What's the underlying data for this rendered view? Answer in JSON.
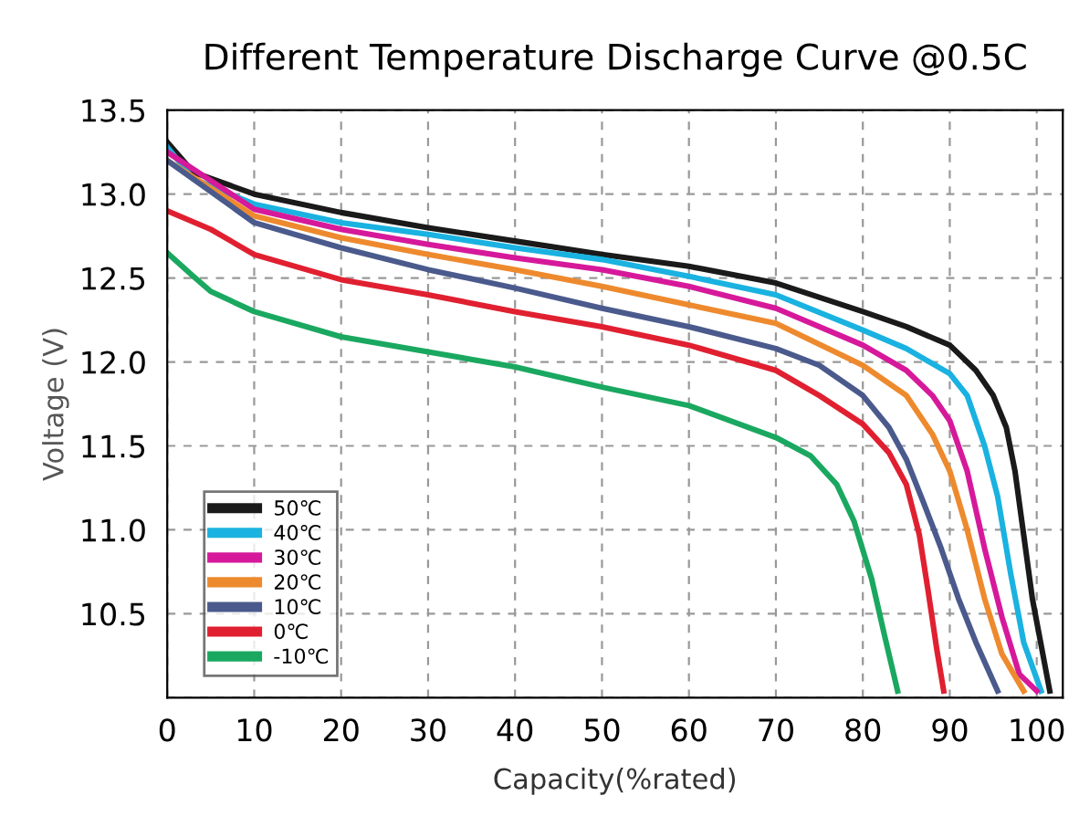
{
  "chart_data": {
    "type": "line",
    "title": "Different Temperature Discharge Curve @0.5C",
    "xlabel": "Capacity(%rated)",
    "ylabel": "Voltage (V)",
    "xlim": [
      0,
      103
    ],
    "xticks": [
      0,
      10,
      20,
      30,
      40,
      50,
      60,
      70,
      80,
      90,
      100
    ],
    "ylim": [
      10.0,
      13.5
    ],
    "yticks": [
      {
        "value": 10.0,
        "label": null
      },
      10.5,
      {
        "value": 11,
        "label": "11.0"
      },
      11.5,
      {
        "value": 12,
        "label": "12.0"
      },
      12.5,
      {
        "value": 13,
        "label": "13.0"
      },
      13.5
    ],
    "grid": true,
    "legend": "bottom left",
    "marker": "none",
    "line_style": "solid",
    "series": [
      {
        "name": "50℃",
        "color": "#1a1a1a",
        "x": [
          0,
          3,
          10,
          20,
          30,
          40,
          50,
          60,
          70,
          80,
          85,
          90,
          93,
          95,
          96.5,
          97.5,
          98.5,
          99.5,
          101.5
        ],
        "values": [
          13.31,
          13.13,
          13.0,
          12.89,
          12.8,
          12.72,
          12.64,
          12.57,
          12.47,
          12.3,
          12.21,
          12.1,
          11.95,
          11.8,
          11.61,
          11.35,
          10.97,
          10.59,
          10.04
        ]
      },
      {
        "name": "40℃",
        "color": "#1ab2e0",
        "x": [
          0,
          3,
          10,
          20,
          30,
          40,
          50,
          60,
          70,
          80,
          85,
          90,
          92,
          94,
          95.5,
          97,
          98.5,
          100.5
        ],
        "values": [
          13.28,
          13.09,
          12.94,
          12.83,
          12.76,
          12.68,
          12.61,
          12.51,
          12.4,
          12.19,
          12.08,
          11.93,
          11.8,
          11.5,
          11.2,
          10.74,
          10.33,
          10.04
        ]
      },
      {
        "name": "30℃",
        "color": "#d6199a",
        "x": [
          0,
          10,
          20,
          30,
          40,
          50,
          60,
          70,
          80,
          85,
          88,
          90,
          92,
          94,
          96,
          98,
          100
        ],
        "values": [
          13.25,
          12.91,
          12.79,
          12.7,
          12.62,
          12.55,
          12.45,
          12.32,
          12.1,
          11.95,
          11.8,
          11.65,
          11.35,
          10.89,
          10.48,
          10.14,
          10.04
        ]
      },
      {
        "name": "20℃",
        "color": "#ee8a2e",
        "x": [
          0,
          10,
          20,
          30,
          40,
          50,
          60,
          70,
          80,
          85,
          88,
          90,
          92,
          94,
          96,
          98.5
        ],
        "values": [
          13.2,
          12.87,
          12.74,
          12.64,
          12.55,
          12.45,
          12.34,
          12.23,
          11.98,
          11.8,
          11.57,
          11.35,
          11.0,
          10.59,
          10.26,
          10.04
        ]
      },
      {
        "name": "10℃",
        "color": "#4a5a8c",
        "x": [
          0,
          10,
          20,
          30,
          40,
          50,
          60,
          70,
          75,
          80,
          83,
          85,
          87,
          89,
          91,
          93,
          95.5
        ],
        "values": [
          13.2,
          12.83,
          12.68,
          12.55,
          12.44,
          12.32,
          12.21,
          12.08,
          11.98,
          11.8,
          11.61,
          11.42,
          11.16,
          10.89,
          10.59,
          10.33,
          10.04
        ]
      },
      {
        "name": "0℃",
        "color": "#e02030",
        "x": [
          0,
          5,
          10,
          20,
          30,
          40,
          50,
          60,
          70,
          75,
          80,
          83,
          85,
          86.5,
          87.5,
          88.5,
          89.3
        ],
        "values": [
          12.9,
          12.79,
          12.64,
          12.49,
          12.4,
          12.3,
          12.21,
          12.1,
          11.95,
          11.8,
          11.63,
          11.46,
          11.27,
          10.97,
          10.64,
          10.29,
          10.04
        ]
      },
      {
        "name": "-10℃",
        "color": "#1aa860",
        "x": [
          0,
          3,
          5,
          10,
          20,
          30,
          40,
          50,
          60,
          70,
          74,
          77,
          79,
          81,
          82.5,
          84
        ],
        "values": [
          12.65,
          12.51,
          12.42,
          12.3,
          12.15,
          12.06,
          11.97,
          11.85,
          11.74,
          11.55,
          11.44,
          11.27,
          11.05,
          10.71,
          10.37,
          10.04
        ]
      }
    ]
  }
}
